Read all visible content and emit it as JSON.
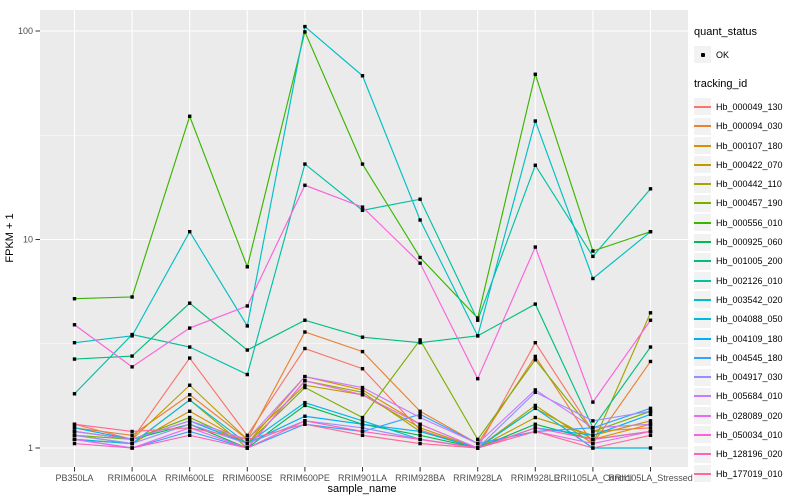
{
  "colors": {
    "panel_bg": "#EBEBEB",
    "grid": "#FFFFFF",
    "tick": "#333333",
    "tick_label": "#4D4D4D",
    "axis_title": "#000000",
    "point": "#000000",
    "legend_key_bg": "#F2F2F2"
  },
  "chart_data": {
    "type": "line",
    "title": "",
    "xlabel": "sample_name",
    "ylabel": "FPKM + 1",
    "y_scale": "log10",
    "ylim": [
      0.8,
      126
    ],
    "y_ticks": [
      1,
      10,
      100
    ],
    "grid": "on",
    "legend_position": "right",
    "point_shape": "small-black-square",
    "categories": [
      "PB350LA",
      "RRIM600LA",
      "RRIM600LE",
      "RRIM600SE",
      "RRIM600PE",
      "RRIM901LA",
      "RRIM928BA",
      "RRIM928LA",
      "RRIM928LE",
      "RRII105LA_Control",
      "RRII105LA_Stressed"
    ],
    "series": [
      {
        "name": "Hb_000049_130",
        "color": "#F8766D",
        "values": [
          1.3,
          1.1,
          2.7,
          1.15,
          3.0,
          2.4,
          1.22,
          1.0,
          3.2,
          1.2,
          1.25
        ]
      },
      {
        "name": "Hb_000094_030",
        "color": "#EA8331",
        "values": [
          1.25,
          1.15,
          1.8,
          1.1,
          3.6,
          2.9,
          1.5,
          1.05,
          2.75,
          1.05,
          2.6
        ]
      },
      {
        "name": "Hb_000107_180",
        "color": "#D89000",
        "values": [
          1.15,
          1.05,
          1.5,
          1.05,
          2.2,
          1.9,
          1.3,
          1.0,
          1.55,
          1.1,
          1.3
        ]
      },
      {
        "name": "Hb_000422_070",
        "color": "#C09B00",
        "values": [
          1.2,
          1.1,
          2.0,
          1.1,
          2.0,
          1.8,
          1.25,
          1.0,
          1.4,
          1.15,
          1.35
        ]
      },
      {
        "name": "Hb_000442_110",
        "color": "#A3A500",
        "values": [
          1.1,
          1.05,
          1.7,
          1.0,
          2.1,
          1.85,
          1.2,
          1.0,
          1.6,
          1.05,
          4.45
        ]
      },
      {
        "name": "Hb_000457_190",
        "color": "#7CAE00",
        "values": [
          1.15,
          1.1,
          1.4,
          1.05,
          1.95,
          1.4,
          3.3,
          1.1,
          2.65,
          1.2,
          1.5
        ]
      },
      {
        "name": "Hb_000556_010",
        "color": "#39B600",
        "values": [
          5.2,
          5.3,
          39.0,
          7.4,
          99.0,
          23.0,
          8.2,
          4.2,
          62.0,
          8.8,
          10.9
        ]
      },
      {
        "name": "Hb_000925_060",
        "color": "#00BB4E",
        "values": [
          1.2,
          1.1,
          1.3,
          1.0,
          1.6,
          1.3,
          1.15,
          1.0,
          1.3,
          1.1,
          1.2
        ]
      },
      {
        "name": "Hb_001005_200",
        "color": "#00BF7D",
        "values": [
          2.67,
          2.76,
          4.95,
          2.95,
          4.1,
          3.4,
          3.2,
          3.45,
          4.9,
          1.25,
          3.05
        ]
      },
      {
        "name": "Hb_002126_010",
        "color": "#00C1A3",
        "values": [
          1.82,
          3.5,
          3.05,
          2.25,
          23.0,
          13.8,
          15.6,
          4.1,
          22.7,
          8.3,
          17.5
        ]
      },
      {
        "name": "Hb_003542_020",
        "color": "#00BFC4",
        "values": [
          3.2,
          3.45,
          10.9,
          3.85,
          105.0,
          61.0,
          12.4,
          3.45,
          37.0,
          6.5,
          10.9
        ]
      },
      {
        "name": "Hb_004088_050",
        "color": "#00BAE0",
        "values": [
          1.1,
          1.05,
          1.7,
          1.05,
          1.65,
          1.35,
          1.1,
          1.0,
          1.55,
          1.0,
          1.0
        ]
      },
      {
        "name": "Hb_004109_180",
        "color": "#00B0F6",
        "values": [
          1.25,
          1.1,
          1.35,
          1.05,
          1.42,
          1.3,
          1.2,
          1.0,
          1.25,
          1.15,
          1.45
        ]
      },
      {
        "name": "Hb_004545_180",
        "color": "#35A2FF",
        "values": [
          1.1,
          1.0,
          1.2,
          1.0,
          1.3,
          1.2,
          1.45,
          1.05,
          1.2,
          1.25,
          1.55
        ]
      },
      {
        "name": "Hb_004917_030",
        "color": "#9590FF",
        "values": [
          1.15,
          1.05,
          1.3,
          1.05,
          1.35,
          1.25,
          1.1,
          1.0,
          1.85,
          1.35,
          1.5
        ]
      },
      {
        "name": "Hb_005684_010",
        "color": "#C77CFF",
        "values": [
          1.2,
          1.1,
          1.35,
          1.1,
          2.2,
          1.95,
          1.4,
          1.05,
          1.9,
          1.25,
          1.3
        ]
      },
      {
        "name": "Hb_028089_020",
        "color": "#E76BF3",
        "values": [
          1.1,
          1.0,
          1.25,
          1.0,
          2.1,
          1.8,
          1.3,
          1.0,
          1.2,
          1.05,
          1.2
        ]
      },
      {
        "name": "Hb_050034_010",
        "color": "#FA62DB",
        "values": [
          3.9,
          2.45,
          3.76,
          4.8,
          18.2,
          14.3,
          7.7,
          2.15,
          9.2,
          1.66,
          4.1
        ]
      },
      {
        "name": "Hb_128196_020",
        "color": "#FF62BC",
        "values": [
          1.05,
          1.0,
          1.15,
          1.0,
          1.35,
          1.2,
          1.1,
          1.0,
          1.25,
          1.1,
          1.2
        ]
      },
      {
        "name": "Hb_177019_010",
        "color": "#FF6A98",
        "values": [
          1.3,
          1.2,
          1.25,
          1.1,
          1.3,
          1.15,
          1.05,
          1.0,
          1.2,
          1.0,
          1.15
        ]
      }
    ]
  },
  "legend": {
    "quant_status_title": "quant_status",
    "quant_status_items": [
      {
        "label": "OK",
        "symbol": "black-point"
      }
    ],
    "tracking_id_title": "tracking_id"
  }
}
